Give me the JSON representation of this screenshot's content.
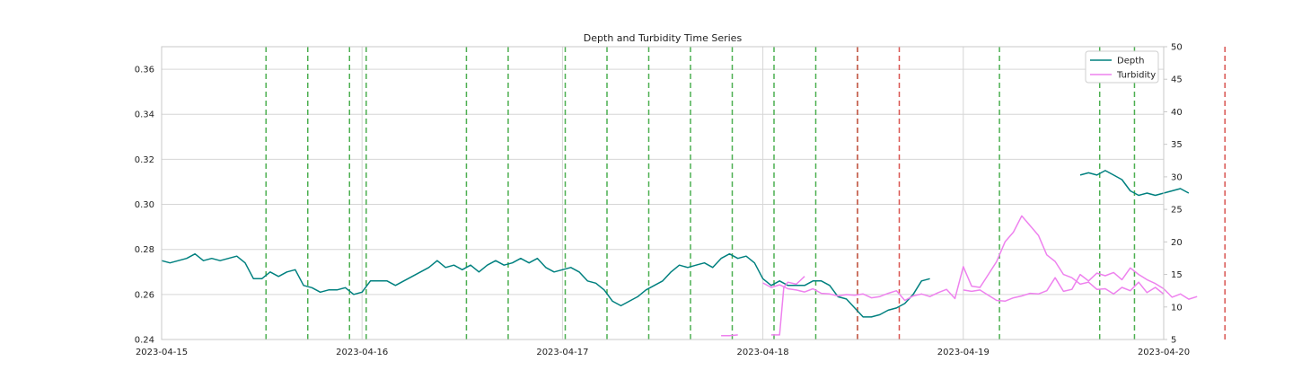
{
  "chart_data": {
    "type": "line",
    "title": "Depth and Turbidity Time Series",
    "xlabel": "",
    "ylabel_left": "",
    "ylabel_right": "",
    "x_ticks": [
      "2023-04-15",
      "2023-04-16",
      "2023-04-17",
      "2023-04-18",
      "2023-04-19",
      "2023-04-20"
    ],
    "x_range": [
      "2023-04-15",
      "2023-04-20"
    ],
    "ylim_left": [
      0.24,
      0.37
    ],
    "y_ticks_left": [
      "0.24",
      "0.26",
      "0.28",
      "0.30",
      "0.32",
      "0.34",
      "0.36"
    ],
    "ylim_right": [
      5,
      50
    ],
    "y_ticks_right": [
      "5",
      "10",
      "15",
      "20",
      "25",
      "30",
      "35",
      "40",
      "45",
      "50"
    ],
    "grid": true,
    "legend_position": "top-right",
    "series": [
      {
        "name": "Depth",
        "axis": "left",
        "color": "#00807f",
        "segments": [
          [
            [
              "2023-04-15 00:00",
              0.275
            ],
            [
              "2023-04-15 01:00",
              0.274
            ],
            [
              "2023-04-15 02:00",
              0.275
            ],
            [
              "2023-04-15 03:00",
              0.276
            ],
            [
              "2023-04-15 04:00",
              0.278
            ],
            [
              "2023-04-15 05:00",
              0.275
            ],
            [
              "2023-04-15 06:00",
              0.276
            ],
            [
              "2023-04-15 07:00",
              0.275
            ],
            [
              "2023-04-15 08:00",
              0.276
            ],
            [
              "2023-04-15 09:00",
              0.277
            ],
            [
              "2023-04-15 10:00",
              0.274
            ],
            [
              "2023-04-15 11:00",
              0.267
            ],
            [
              "2023-04-15 12:00",
              0.267
            ],
            [
              "2023-04-15 13:00",
              0.27
            ],
            [
              "2023-04-15 14:00",
              0.268
            ],
            [
              "2023-04-15 15:00",
              0.27
            ],
            [
              "2023-04-15 16:00",
              0.271
            ],
            [
              "2023-04-15 17:00",
              0.264
            ],
            [
              "2023-04-15 18:00",
              0.263
            ],
            [
              "2023-04-15 19:00",
              0.261
            ],
            [
              "2023-04-15 20:00",
              0.262
            ],
            [
              "2023-04-15 21:00",
              0.262
            ],
            [
              "2023-04-15 22:00",
              0.263
            ],
            [
              "2023-04-15 23:00",
              0.26
            ],
            [
              "2023-04-16 00:00",
              0.261
            ],
            [
              "2023-04-16 01:00",
              0.266
            ],
            [
              "2023-04-16 02:00",
              0.266
            ],
            [
              "2023-04-16 03:00",
              0.266
            ],
            [
              "2023-04-16 04:00",
              0.264
            ],
            [
              "2023-04-16 05:00",
              0.266
            ],
            [
              "2023-04-16 06:00",
              0.268
            ],
            [
              "2023-04-16 07:00",
              0.27
            ],
            [
              "2023-04-16 08:00",
              0.272
            ],
            [
              "2023-04-16 09:00",
              0.275
            ],
            [
              "2023-04-16 10:00",
              0.272
            ],
            [
              "2023-04-16 11:00",
              0.273
            ],
            [
              "2023-04-16 12:00",
              0.271
            ],
            [
              "2023-04-16 13:00",
              0.273
            ],
            [
              "2023-04-16 14:00",
              0.27
            ],
            [
              "2023-04-16 15:00",
              0.273
            ],
            [
              "2023-04-16 16:00",
              0.275
            ],
            [
              "2023-04-16 17:00",
              0.273
            ],
            [
              "2023-04-16 18:00",
              0.274
            ],
            [
              "2023-04-16 19:00",
              0.276
            ],
            [
              "2023-04-16 20:00",
              0.274
            ],
            [
              "2023-04-16 21:00",
              0.276
            ],
            [
              "2023-04-16 22:00",
              0.272
            ],
            [
              "2023-04-16 23:00",
              0.27
            ],
            [
              "2023-04-17 00:00",
              0.271
            ],
            [
              "2023-04-17 01:00",
              0.272
            ],
            [
              "2023-04-17 02:00",
              0.27
            ],
            [
              "2023-04-17 03:00",
              0.266
            ],
            [
              "2023-04-17 04:00",
              0.265
            ],
            [
              "2023-04-17 05:00",
              0.262
            ],
            [
              "2023-04-17 06:00",
              0.257
            ],
            [
              "2023-04-17 07:00",
              0.255
            ],
            [
              "2023-04-17 08:00",
              0.257
            ],
            [
              "2023-04-17 09:00",
              0.259
            ],
            [
              "2023-04-17 10:00",
              0.262
            ],
            [
              "2023-04-17 11:00",
              0.264
            ],
            [
              "2023-04-17 12:00",
              0.266
            ],
            [
              "2023-04-17 13:00",
              0.27
            ],
            [
              "2023-04-17 14:00",
              0.273
            ],
            [
              "2023-04-17 15:00",
              0.272
            ],
            [
              "2023-04-17 16:00",
              0.273
            ],
            [
              "2023-04-17 17:00",
              0.274
            ],
            [
              "2023-04-17 18:00",
              0.272
            ],
            [
              "2023-04-17 19:00",
              0.276
            ],
            [
              "2023-04-17 20:00",
              0.278
            ],
            [
              "2023-04-17 21:00",
              0.276
            ],
            [
              "2023-04-17 22:00",
              0.277
            ],
            [
              "2023-04-17 23:00",
              0.274
            ],
            [
              "2023-04-18 00:00",
              0.267
            ],
            [
              "2023-04-18 01:00",
              0.264
            ],
            [
              "2023-04-18 02:00",
              0.266
            ],
            [
              "2023-04-18 03:00",
              0.264
            ],
            [
              "2023-04-18 04:00",
              0.264
            ],
            [
              "2023-04-18 05:00",
              0.264
            ],
            [
              "2023-04-18 06:00",
              0.266
            ],
            [
              "2023-04-18 07:00",
              0.266
            ],
            [
              "2023-04-18 08:00",
              0.264
            ],
            [
              "2023-04-18 09:00",
              0.259
            ],
            [
              "2023-04-18 10:00",
              0.258
            ],
            [
              "2023-04-18 11:00",
              0.254
            ],
            [
              "2023-04-18 12:00",
              0.25
            ],
            [
              "2023-04-18 13:00",
              0.25
            ],
            [
              "2023-04-18 14:00",
              0.251
            ],
            [
              "2023-04-18 15:00",
              0.253
            ],
            [
              "2023-04-18 16:00",
              0.254
            ],
            [
              "2023-04-18 17:00",
              0.256
            ],
            [
              "2023-04-18 18:00",
              0.26
            ],
            [
              "2023-04-18 19:00",
              0.266
            ],
            [
              "2023-04-18 20:00",
              0.267
            ]
          ],
          [
            [
              "2023-04-19 14:00",
              0.313
            ],
            [
              "2023-04-19 15:00",
              0.314
            ],
            [
              "2023-04-19 16:00",
              0.313
            ],
            [
              "2023-04-19 17:00",
              0.315
            ],
            [
              "2023-04-19 18:00",
              0.313
            ],
            [
              "2023-04-19 19:00",
              0.311
            ],
            [
              "2023-04-19 20:00",
              0.306
            ],
            [
              "2023-04-19 21:00",
              0.304
            ],
            [
              "2023-04-19 22:00",
              0.305
            ],
            [
              "2023-04-19 23:00",
              0.304
            ],
            [
              "2023-04-20 00:00",
              0.305
            ],
            [
              "2023-04-20 01:00",
              0.306
            ],
            [
              "2023-04-20 02:00",
              0.307
            ],
            [
              "2023-04-20 03:00",
              0.305
            ]
          ]
        ]
      },
      {
        "name": "Turbidity",
        "axis": "right",
        "color": "#ee82ee",
        "segments": [
          [
            [
              "2023-04-17 19:00",
              5.6
            ],
            [
              "2023-04-17 20:00",
              5.6
            ],
            [
              "2023-04-17 21:00",
              5.7
            ]
          ],
          [
            [
              "2023-04-18 01:00",
              5.7
            ],
            [
              "2023-04-18 02:00",
              5.7
            ],
            [
              "2023-04-18 02:30",
              13.0
            ],
            [
              "2023-04-18 03:00",
              13.8
            ],
            [
              "2023-04-18 04:00",
              13.5
            ],
            [
              "2023-04-18 05:00",
              14.7
            ]
          ],
          [
            [
              "2023-04-18 00:00",
              13.7
            ],
            [
              "2023-04-18 01:00",
              13.0
            ],
            [
              "2023-04-18 02:00",
              13.4
            ],
            [
              "2023-04-18 03:00",
              12.8
            ],
            [
              "2023-04-18 04:00",
              12.6
            ],
            [
              "2023-04-18 05:00",
              12.3
            ],
            [
              "2023-04-18 06:00",
              12.8
            ],
            [
              "2023-04-18 07:00",
              12.1
            ],
            [
              "2023-04-18 08:00",
              12.0
            ],
            [
              "2023-04-18 09:00",
              11.7
            ],
            [
              "2023-04-18 10:00",
              11.9
            ],
            [
              "2023-04-18 11:00",
              11.8
            ],
            [
              "2023-04-18 12:00",
              12.0
            ],
            [
              "2023-04-18 13:00",
              11.4
            ],
            [
              "2023-04-18 14:00",
              11.6
            ],
            [
              "2023-04-18 15:00",
              12.1
            ],
            [
              "2023-04-18 16:00",
              12.5
            ],
            [
              "2023-04-18 17:00",
              11.0
            ],
            [
              "2023-04-18 18:00",
              11.7
            ],
            [
              "2023-04-18 19:00",
              12.0
            ],
            [
              "2023-04-18 20:00",
              11.6
            ],
            [
              "2023-04-18 21:00",
              12.2
            ],
            [
              "2023-04-18 22:00",
              12.7
            ],
            [
              "2023-04-18 23:00",
              11.3
            ],
            [
              "2023-04-19 00:00",
              16.2
            ],
            [
              "2023-04-19 01:00",
              13.2
            ],
            [
              "2023-04-19 02:00",
              13.0
            ],
            [
              "2023-04-19 03:00",
              15.0
            ],
            [
              "2023-04-19 04:00",
              17.0
            ],
            [
              "2023-04-19 05:00",
              20.0
            ],
            [
              "2023-04-19 06:00",
              21.5
            ],
            [
              "2023-04-19 07:00",
              24.0
            ],
            [
              "2023-04-19 08:00",
              22.5
            ],
            [
              "2023-04-19 09:00",
              21.0
            ],
            [
              "2023-04-19 10:00",
              18.0
            ],
            [
              "2023-04-19 11:00",
              17.0
            ],
            [
              "2023-04-19 12:00",
              15.0
            ],
            [
              "2023-04-19 13:00",
              14.5
            ],
            [
              "2023-04-19 14:00",
              13.5
            ],
            [
              "2023-04-19 15:00",
              13.8
            ],
            [
              "2023-04-19 16:00",
              12.7
            ],
            [
              "2023-04-19 17:00",
              12.8
            ],
            [
              "2023-04-19 18:00",
              12.0
            ],
            [
              "2023-04-19 19:00",
              13.0
            ],
            [
              "2023-04-19 20:00",
              12.5
            ],
            [
              "2023-04-19 21:00",
              13.8
            ],
            [
              "2023-04-19 22:00",
              12.2
            ],
            [
              "2023-04-19 23:00",
              13.0
            ],
            [
              "2023-04-19 23:59",
              12.0
            ]
          ],
          [
            [
              "2023-04-19 00:00",
              12.6
            ],
            [
              "2023-04-19 01:00",
              12.4
            ],
            [
              "2023-04-19 02:00",
              12.6
            ],
            [
              "2023-04-19 03:00",
              11.8
            ],
            [
              "2023-04-19 04:00",
              11.0
            ],
            [
              "2023-04-19 05:00",
              10.9
            ],
            [
              "2023-04-19 06:00",
              11.4
            ],
            [
              "2023-04-19 07:00",
              11.7
            ],
            [
              "2023-04-19 08:00",
              12.1
            ],
            [
              "2023-04-19 09:00",
              12.0
            ],
            [
              "2023-04-19 10:00",
              12.5
            ],
            [
              "2023-04-19 11:00",
              14.5
            ],
            [
              "2023-04-19 12:00",
              12.4
            ],
            [
              "2023-04-19 13:00",
              12.7
            ],
            [
              "2023-04-19 14:00",
              15.0
            ],
            [
              "2023-04-19 15:00",
              14.0
            ],
            [
              "2023-04-19 16:00",
              15.2
            ],
            [
              "2023-04-19 17:00",
              14.8
            ],
            [
              "2023-04-19 18:00",
              15.3
            ],
            [
              "2023-04-19 19:00",
              14.2
            ],
            [
              "2023-04-19 20:00",
              16.0
            ],
            [
              "2023-04-19 21:00",
              15.0
            ],
            [
              "2023-04-19 22:00",
              14.2
            ],
            [
              "2023-04-19 23:00",
              13.6
            ],
            [
              "2023-04-20 00:00",
              12.8
            ],
            [
              "2023-04-20 01:00",
              11.5
            ],
            [
              "2023-04-20 02:00",
              12.0
            ],
            [
              "2023-04-20 03:00",
              11.2
            ],
            [
              "2023-04-20 04:00",
              11.6
            ]
          ]
        ]
      }
    ],
    "vertical_lines": {
      "green": {
        "color": "#4caf50",
        "x": [
          "2023-04-15 12:30",
          "2023-04-15 17:30",
          "2023-04-15 22:30",
          "2023-04-16 00:30",
          "2023-04-16 12:30",
          "2023-04-16 17:30",
          "2023-04-17 00:20",
          "2023-04-17 05:20",
          "2023-04-17 10:20",
          "2023-04-17 15:20",
          "2023-04-17 20:20",
          "2023-04-18 01:20",
          "2023-04-18 06:20",
          "2023-04-18 11:20",
          "2023-04-19 04:20",
          "2023-04-19 16:20",
          "2023-04-19 20:30"
        ]
      },
      "red": {
        "color": "#d9534f",
        "x": [
          "2023-04-18 11:20",
          "2023-04-18 16:20",
          "2023-04-20 07:20"
        ]
      }
    }
  }
}
